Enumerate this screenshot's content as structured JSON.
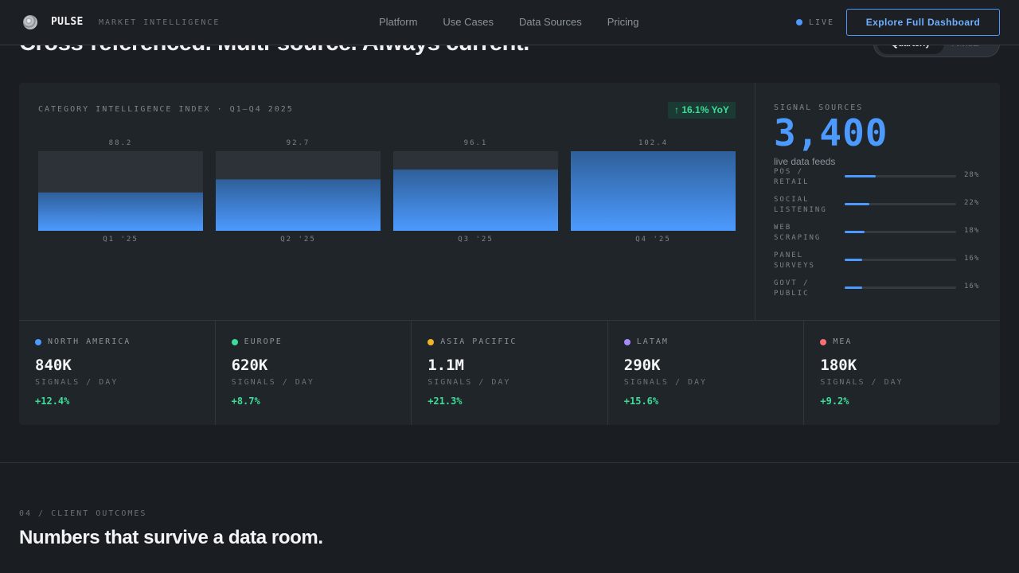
{
  "nav": {
    "brand": "PULSE",
    "tagline": "MARKET INTELLIGENCE",
    "links": [
      "Platform",
      "Use Cases",
      "Data Sources",
      "Pricing"
    ],
    "live_label": "LIVE",
    "cta_label": "Explore Full Dashboard"
  },
  "hero": {
    "title": "Cross-referenced. Multi-source. Always current.",
    "toggle_active": "Quarterly",
    "toggle_inactive": "Annual"
  },
  "chart": {
    "title": "CATEGORY INTELLIGENCE INDEX · Q1–Q4 2025",
    "yoy_badge": "↑ 16.1% YoY"
  },
  "chart_data": {
    "type": "bar",
    "categories": [
      "Q1 '25",
      "Q2 '25",
      "Q3 '25",
      "Q4 '25"
    ],
    "values": [
      88.2,
      92.7,
      96.1,
      102.4
    ],
    "value_labels": [
      "88.2",
      "92.7",
      "96.1",
      "102.4"
    ],
    "title": "CATEGORY INTELLIGENCE INDEX · Q1–Q4 2025",
    "ylim": [
      75,
      102.4
    ],
    "colors": {
      "bar_top": "#2f5f99",
      "bar_bottom": "#4c9aff",
      "track": "#2c3238"
    }
  },
  "sources": {
    "label": "SIGNAL SOURCES",
    "count": "3,400",
    "subtitle": "live data feeds",
    "items": [
      {
        "name": "POS / RETAIL",
        "pct_label": "28%",
        "share": 0.28
      },
      {
        "name": "SOCIAL LISTENING",
        "pct_label": "22%",
        "share": 0.22
      },
      {
        "name": "WEB SCRAPING",
        "pct_label": "18%",
        "share": 0.18
      },
      {
        "name": "PANEL SURVEYS",
        "pct_label": "16%",
        "share": 0.16
      },
      {
        "name": "GOVT / PUBLIC",
        "pct_label": "16%",
        "share": 0.16
      }
    ]
  },
  "regions": [
    {
      "name": "NORTH AMERICA",
      "value": "840K",
      "unit": "SIGNALS / DAY",
      "delta": "+12.4%",
      "color": "#4c9aff"
    },
    {
      "name": "EUROPE",
      "value": "620K",
      "unit": "SIGNALS / DAY",
      "delta": "+8.7%",
      "color": "#3ddc97"
    },
    {
      "name": "ASIA PACIFIC",
      "value": "1.1M",
      "unit": "SIGNALS / DAY",
      "delta": "+21.3%",
      "color": "#f0b429"
    },
    {
      "name": "LATAM",
      "value": "290K",
      "unit": "SIGNALS / DAY",
      "delta": "+15.6%",
      "color": "#a78bfa"
    },
    {
      "name": "MEA",
      "value": "180K",
      "unit": "SIGNALS / DAY",
      "delta": "+9.2%",
      "color": "#f87171"
    }
  ],
  "outcomes": {
    "eyebrow": "04 / CLIENT OUTCOMES",
    "title": "Numbers that survive a data room."
  },
  "colors": {
    "accent": "#4c9aff",
    "positive": "#3ddc97",
    "background": "#1a1e22",
    "panel": "#20252a"
  }
}
